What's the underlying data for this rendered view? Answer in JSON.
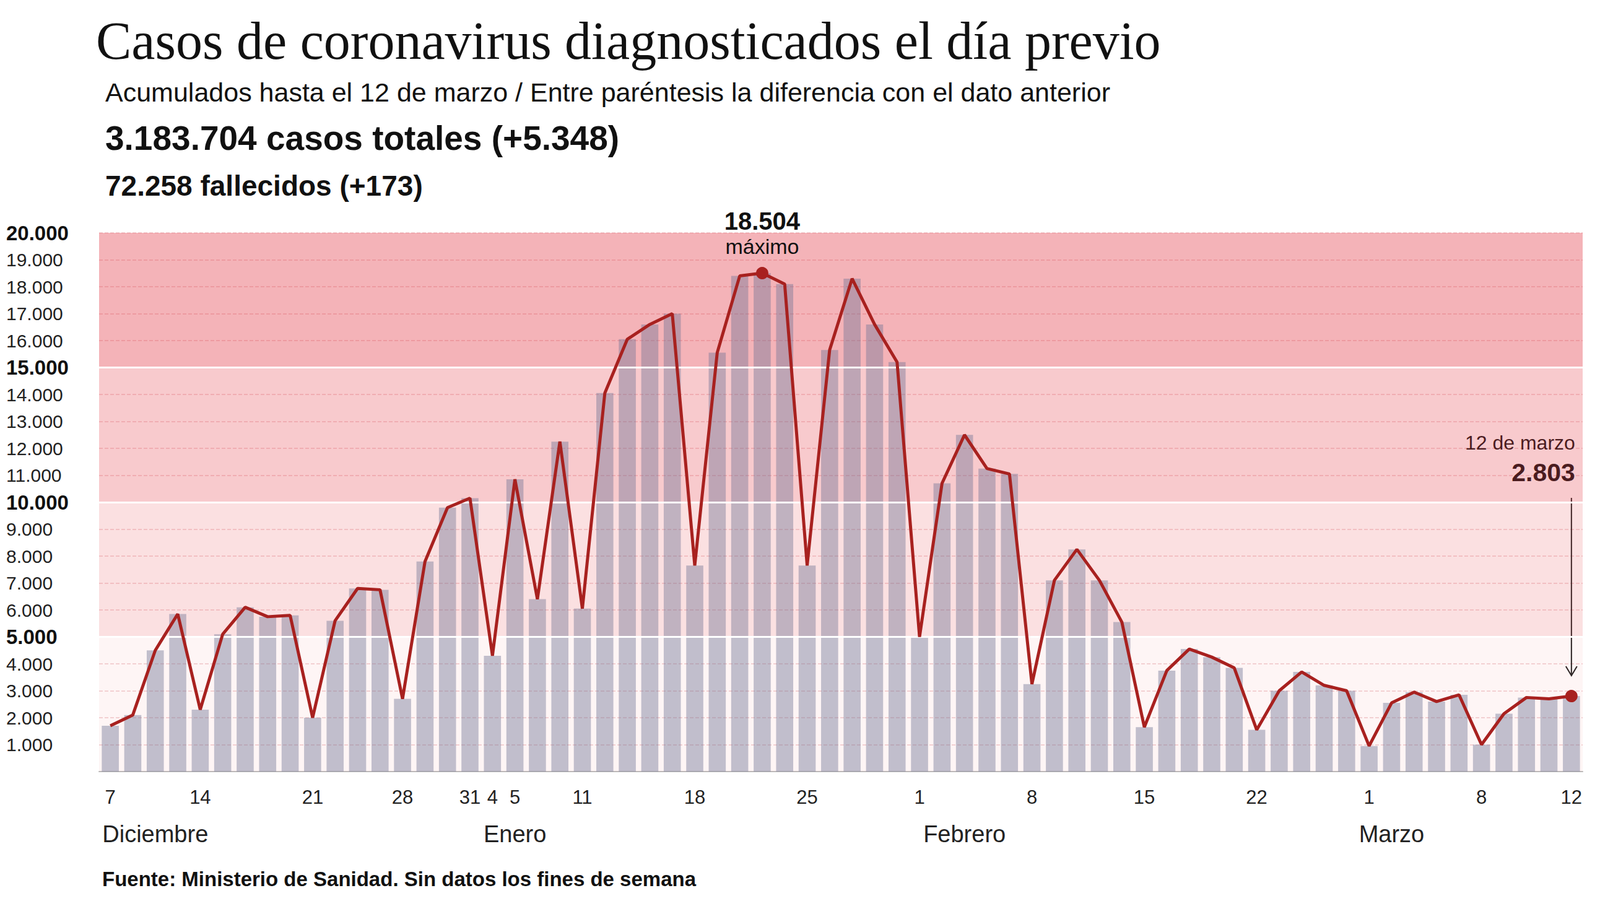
{
  "chart_data": {
    "type": "bar",
    "title": "Casos de coronavirus diagnosticados el día previo",
    "subtitle": "Acumulados hasta el 12 de marzo / Entre paréntesis la diferencia con el dato anterior",
    "stats": [
      [
        {
          "text": "3.183.704",
          "bold": true
        },
        {
          "text": " casos totales (",
          "bold": false
        },
        {
          "text": "+5.348",
          "bold": true
        },
        {
          "text": ")",
          "bold": false
        }
      ],
      [
        {
          "text": "72.258",
          "bold": true
        },
        {
          "text": " fallecidos (",
          "bold": false
        },
        {
          "text": "+173",
          "bold": true
        },
        {
          "text": ")",
          "bold": false
        }
      ]
    ],
    "source": [
      {
        "text": "Fuente:",
        "bold": true
      },
      {
        "text": " Ministerio de Sanidad. Sin datos los fines de semana",
        "bold": false
      }
    ],
    "categories": [
      "7",
      null,
      null,
      null,
      "14",
      null,
      null,
      null,
      null,
      "21",
      null,
      null,
      null,
      "28",
      null,
      null,
      "31",
      "4",
      "5",
      null,
      null,
      "11",
      null,
      null,
      null,
      null,
      "18",
      null,
      null,
      null,
      null,
      "25",
      null,
      null,
      null,
      null,
      "1",
      null,
      null,
      null,
      null,
      "8",
      null,
      null,
      null,
      null,
      "15",
      null,
      null,
      null,
      null,
      "22",
      null,
      null,
      null,
      null,
      "1",
      null,
      null,
      null,
      null,
      "8",
      null,
      null,
      null,
      "12"
    ],
    "month_labels": [
      null,
      null,
      "Diciembre",
      null,
      null,
      null,
      null,
      null,
      null,
      null,
      null,
      null,
      null,
      null,
      null,
      null,
      null,
      null,
      "Enero",
      null,
      null,
      null,
      null,
      null,
      null,
      null,
      null,
      null,
      null,
      null,
      null,
      null,
      null,
      null,
      null,
      null,
      null,
      null,
      "Febrero",
      null,
      null,
      null,
      null,
      null,
      null,
      null,
      null,
      null,
      null,
      null,
      null,
      null,
      null,
      null,
      null,
      null,
      null,
      "Marzo",
      null,
      null,
      null,
      null,
      null,
      null,
      null,
      null
    ],
    "series": [
      {
        "type": "bar",
        "color": "#6e7394",
        "values": [
          1700,
          2100,
          4500,
          5850,
          2300,
          5100,
          6100,
          5750,
          5800,
          2000,
          5600,
          6800,
          6750,
          2700,
          7800,
          9800,
          10150,
          4300,
          10850,
          6400,
          12250,
          6050,
          14050,
          16050,
          16600,
          17000,
          7650,
          15550,
          18400,
          18504,
          18100,
          7650,
          15650,
          18300,
          16600,
          15200,
          5000,
          10700,
          12500,
          11250,
          11050,
          3250,
          7100,
          8250,
          7100,
          5550,
          1650,
          3750,
          4550,
          4250,
          3850,
          1550,
          3000,
          3700,
          3200,
          3000,
          950,
          2550,
          2950,
          2600,
          2850,
          1000,
          2150,
          2750,
          2700,
          2803
        ]
      },
      {
        "type": "line",
        "color": "#a8211f",
        "values": [
          1700,
          2100,
          4500,
          5850,
          2300,
          5100,
          6100,
          5750,
          5800,
          2000,
          5600,
          6800,
          6750,
          2700,
          7800,
          9800,
          10150,
          4300,
          10850,
          6400,
          12250,
          6050,
          14050,
          16050,
          16600,
          17000,
          7650,
          15550,
          18400,
          18504,
          18100,
          7650,
          15650,
          18300,
          16600,
          15200,
          5000,
          10700,
          12500,
          11250,
          11050,
          3250,
          7100,
          8250,
          7100,
          5550,
          1650,
          3750,
          4550,
          4250,
          3850,
          1550,
          3000,
          3700,
          3200,
          3000,
          950,
          2550,
          2950,
          2600,
          2850,
          1000,
          2150,
          2750,
          2700,
          2803
        ]
      }
    ],
    "ylim": [
      0,
      20000
    ],
    "yticks": [
      {
        "value": 1000,
        "label": "1.000"
      },
      {
        "value": 2000,
        "label": "2.000"
      },
      {
        "value": 3000,
        "label": "3.000"
      },
      {
        "value": 4000,
        "label": "4.000"
      },
      {
        "value": 5000,
        "label": "5.000"
      },
      {
        "value": 6000,
        "label": "6.000"
      },
      {
        "value": 7000,
        "label": "7.000"
      },
      {
        "value": 8000,
        "label": "8.000"
      },
      {
        "value": 9000,
        "label": "9.000"
      },
      {
        "value": 10000,
        "label": "10.000"
      },
      {
        "value": 11000,
        "label": "11.000"
      },
      {
        "value": 12000,
        "label": "12.000"
      },
      {
        "value": 13000,
        "label": "13.000"
      },
      {
        "value": 14000,
        "label": "14.000"
      },
      {
        "value": 15000,
        "label": "15.000"
      },
      {
        "value": 16000,
        "label": "16.000"
      },
      {
        "value": 17000,
        "label": "17.000"
      },
      {
        "value": 18000,
        "label": "18.000"
      },
      {
        "value": 19000,
        "label": "19.000"
      },
      {
        "value": 20000,
        "label": "20.000"
      }
    ],
    "bands": [
      5000,
      10000,
      15000
    ],
    "grid": true,
    "annotations": [
      {
        "index": 29,
        "value": 18504,
        "label": "18.504",
        "text": "máximo"
      },
      {
        "index": 65,
        "value": 2803,
        "label": "2.803",
        "text": "12 de marzo"
      }
    ]
  }
}
